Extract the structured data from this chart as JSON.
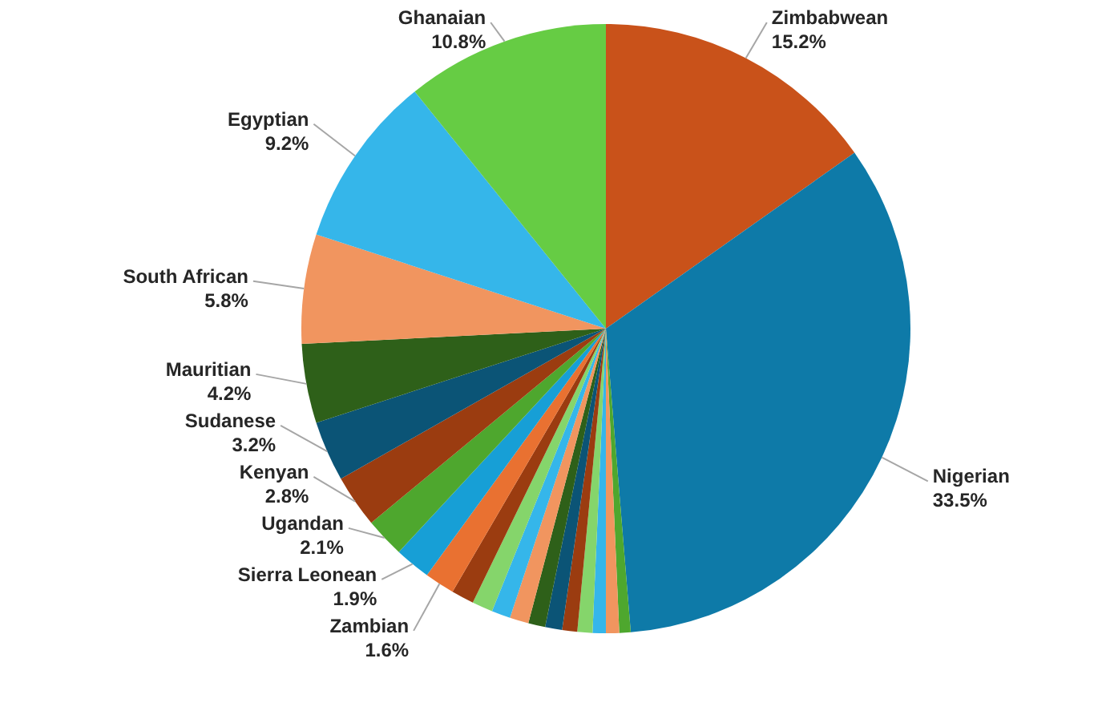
{
  "chart_data": {
    "type": "pie",
    "categories": [
      "Zimbabwean",
      "Nigerian",
      null,
      null,
      null,
      null,
      null,
      null,
      null,
      null,
      null,
      null,
      null,
      "Zambian",
      "Sierra Leonean",
      "Ugandan",
      "Kenyan",
      "Sudanese",
      "Mauritian",
      "South African",
      "Egyptian",
      "Ghanaian"
    ],
    "values": [
      15.2,
      33.5,
      0.6,
      0.7,
      0.7,
      0.8,
      0.8,
      0.9,
      0.9,
      1.0,
      1.0,
      1.1,
      1.2,
      1.6,
      1.9,
      2.1,
      2.8,
      3.2,
      4.2,
      5.8,
      9.2,
      10.8
    ],
    "value_labels": [
      "15.2%",
      "33.5%",
      null,
      null,
      null,
      null,
      null,
      null,
      null,
      null,
      null,
      null,
      null,
      "1.6%",
      "1.9%",
      "2.1%",
      "2.8%",
      "3.2%",
      "4.2%",
      "5.8%",
      "9.2%",
      "10.8%"
    ],
    "colors": [
      "#c9521a",
      "#0e7aa8",
      "#4ea72e",
      "#f1955f",
      "#35b6ea",
      "#85d56b",
      "#9b3c10",
      "#0b5476",
      "#2e6019",
      "#f1955f",
      "#35b6ea",
      "#85d56b",
      "#9b3c10",
      "#e97131",
      "#179fd6",
      "#4ea72e",
      "#9b3c10",
      "#0b5476",
      "#2e6019",
      "#f1955f",
      "#35b6ea",
      "#66cc44"
    ]
  }
}
